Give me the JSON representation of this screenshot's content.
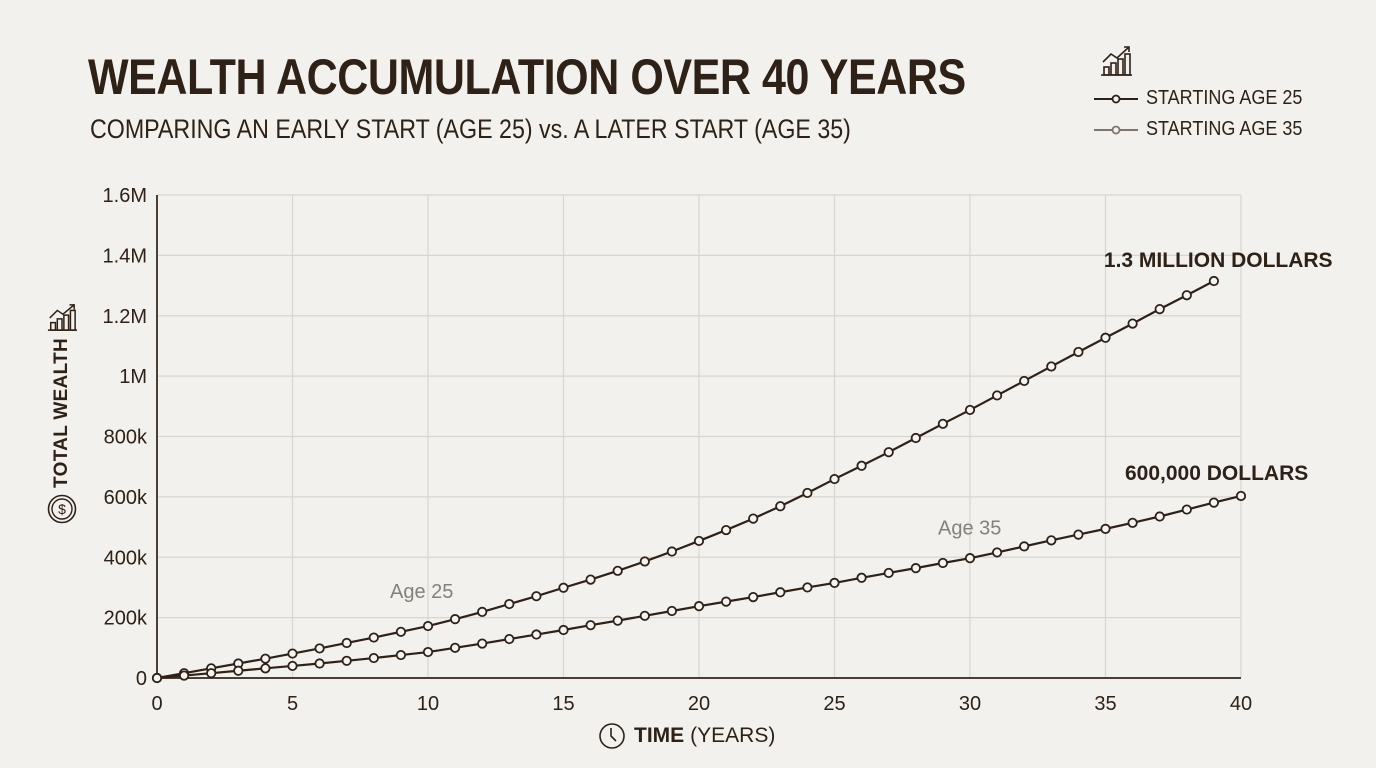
{
  "header": {
    "title": "WEALTH ACCUMULATION OVER 40 YEARS",
    "subtitle": "COMPARING AN EARLY START (AGE 25) vs. A LATER START (AGE 35)"
  },
  "legend": {
    "icon": "bar-chart-trend-icon",
    "items": [
      {
        "label": "STARTING AGE 25",
        "color": "#2e2117"
      },
      {
        "label": "STARTING AGE 35",
        "color": "#7d756c"
      }
    ]
  },
  "axes": {
    "y_label": "TOTAL WEALTH",
    "y_label_icons": [
      "bar-chart-trend-icon",
      "dollar-coin-icon"
    ],
    "x_label_bold": "TIME",
    "x_label_rest": "(YEARS)",
    "x_label_icon": "clock-icon"
  },
  "colors": {
    "background": "#f3f1ed",
    "line": "#2e2117",
    "grid": "#d9d5cf",
    "muted_text": "#858079"
  },
  "chart_data": {
    "type": "line",
    "title": "WEALTH ACCUMULATION OVER 40 YEARS",
    "subtitle": "COMPARING AN EARLY START (AGE 25) vs. A LATER START (AGE 35)",
    "xlabel": "TIME (YEARS)",
    "ylabel": "TOTAL WEALTH",
    "xlim": [
      0,
      40
    ],
    "ylim": [
      0,
      1600000
    ],
    "x_ticks": [
      0,
      5,
      10,
      15,
      20,
      25,
      30,
      35,
      40
    ],
    "y_ticks": [
      0,
      200000,
      400000,
      600000,
      800000,
      1000000,
      1200000,
      1400000,
      1600000
    ],
    "y_tick_labels": [
      "0",
      "200k",
      "400k",
      "600k",
      "800k",
      "1M",
      "1.2M",
      "1.4M",
      "1.6M"
    ],
    "grid": true,
    "legend_position": "top-right",
    "series": [
      {
        "name": "STARTING AGE 25",
        "x": [
          0,
          1,
          2,
          3,
          4,
          5,
          6,
          7,
          8,
          9,
          10,
          11,
          12,
          13,
          14,
          15,
          16,
          17,
          18,
          19,
          20,
          21,
          22,
          23,
          24,
          25,
          26,
          27,
          28,
          29,
          30,
          31,
          32,
          33,
          34,
          35,
          36,
          37,
          38,
          39
        ],
        "values": [
          0,
          16000,
          32000,
          48000,
          64000,
          81000,
          98000,
          116000,
          134000,
          153000,
          172000,
          195000,
          219000,
          245000,
          271000,
          299000,
          326000,
          355000,
          386000,
          419000,
          454000,
          490000,
          528000,
          569000,
          613000,
          659000,
          703000,
          748000,
          795000,
          842000,
          888000,
          936000,
          984000,
          1032000,
          1080000,
          1127000,
          1174000,
          1222000,
          1268000,
          1315000
        ]
      },
      {
        "name": "STARTING AGE 35",
        "x": [
          0,
          1,
          2,
          3,
          4,
          5,
          6,
          7,
          8,
          9,
          10,
          11,
          12,
          13,
          14,
          15,
          16,
          17,
          18,
          19,
          20,
          21,
          22,
          23,
          24,
          25,
          26,
          27,
          28,
          29,
          30,
          31,
          32,
          33,
          34,
          35,
          36,
          37,
          38,
          39,
          40
        ],
        "values": [
          0,
          8000,
          16000,
          24000,
          32000,
          40000,
          48000,
          57000,
          66000,
          76000,
          86000,
          100000,
          114000,
          129000,
          144000,
          159000,
          175000,
          190000,
          206000,
          222000,
          238000,
          253000,
          268000,
          284000,
          300000,
          315000,
          332000,
          348000,
          364000,
          381000,
          397000,
          416000,
          436000,
          456000,
          475000,
          494000,
          514000,
          535000,
          558000,
          581000,
          603000
        ]
      }
    ],
    "annotations": [
      {
        "text": "1.3 MILLION DOLLARS",
        "x": 39,
        "y": 1315000,
        "style": "bold"
      },
      {
        "text": "600,000 DOLLARS",
        "x": 40,
        "y": 603000,
        "style": "bold"
      },
      {
        "text": "Age 25",
        "x": 10,
        "y": 265000,
        "style": "muted"
      },
      {
        "text": "Age 35",
        "x": 30,
        "y": 475000,
        "style": "muted"
      }
    ]
  }
}
